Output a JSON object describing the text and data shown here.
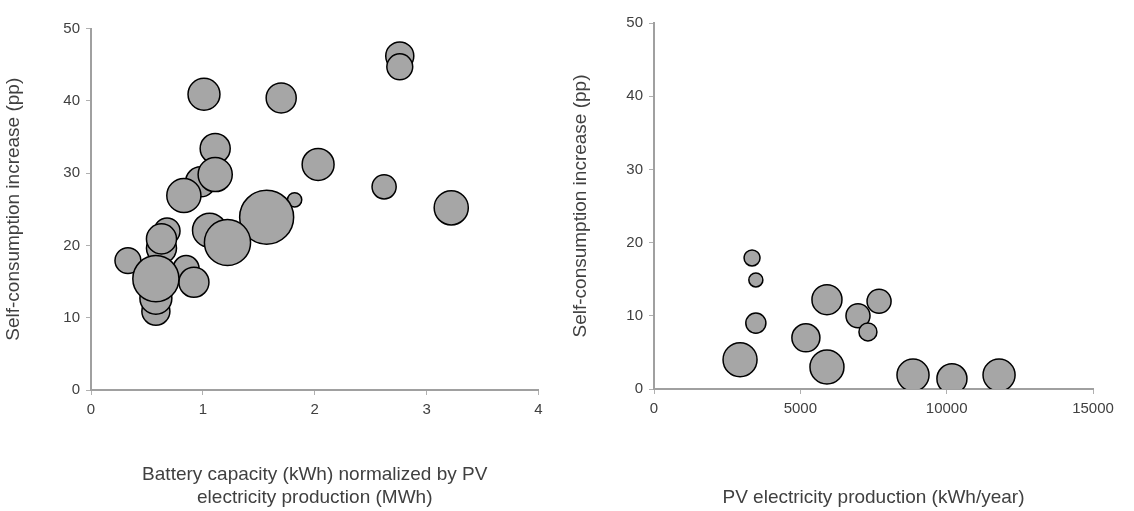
{
  "chart_data": [
    {
      "type": "bubble",
      "xlabel": "Battery capacity (kWh) normalized by PV electricity production (MWh)",
      "ylabel": "Self-consumption increase (pp)",
      "xlim": [
        0,
        4
      ],
      "xticks": [
        0,
        1,
        2,
        3,
        4
      ],
      "ylim": [
        0,
        50
      ],
      "yticks": [
        0,
        10,
        20,
        30,
        40,
        50
      ],
      "grid": false,
      "color": "#a6a6a6",
      "x": [
        2.76,
        2.76,
        1.01,
        1.7,
        1.11,
        0.98,
        1.11,
        0.83,
        2.03,
        2.62,
        1.82,
        3.22,
        1.57,
        1.06,
        1.22,
        0.68,
        0.63,
        0.63,
        0.33,
        0.85,
        0.92,
        0.58,
        0.58,
        0.58
      ],
      "values": [
        46.2,
        44.7,
        40.9,
        40.4,
        33.4,
        28.8,
        29.8,
        26.9,
        31.2,
        28.1,
        26.3,
        25.2,
        23.9,
        22.1,
        20.4,
        22.0,
        19.6,
        20.9,
        17.9,
        16.8,
        14.9,
        10.9,
        12.7,
        15.4
      ],
      "sizes": [
        0.27,
        0.23,
        0.35,
        0.31,
        0.31,
        0.31,
        0.4,
        0.4,
        0.35,
        0.2,
        0.07,
        0.4,
        1,
        0.4,
        0.73,
        0.23,
        0.31,
        0.31,
        0.23,
        0.23,
        0.31,
        0.27,
        0.35,
        0.73
      ]
    },
    {
      "type": "bubble",
      "xlabel": "PV electricity production (kWh/year)",
      "ylabel": "Self-consumption increase (pp)",
      "xlim": [
        0,
        15000
      ],
      "xticks": [
        0,
        5000,
        10000,
        15000
      ],
      "ylim": [
        0,
        50
      ],
      "yticks": [
        0,
        10,
        20,
        30,
        40,
        50
      ],
      "grid": false,
      "color": "#a6a6a6",
      "x": [
        3350,
        3480,
        3480,
        2940,
        5190,
        5910,
        5910,
        6970,
        7690,
        7310,
        8850,
        10180,
        11790
      ],
      "values": [
        17.9,
        14.9,
        9.0,
        4.0,
        7.0,
        12.2,
        3.0,
        10.0,
        12.0,
        7.8,
        1.9,
        1.4,
        1.9
      ],
      "sizes": [
        0.22,
        0.17,
        0.35,
        1,
        0.68,
        0.78,
        1,
        0.5,
        0.5,
        0.28,
        0.89,
        0.78,
        0.89
      ]
    }
  ]
}
